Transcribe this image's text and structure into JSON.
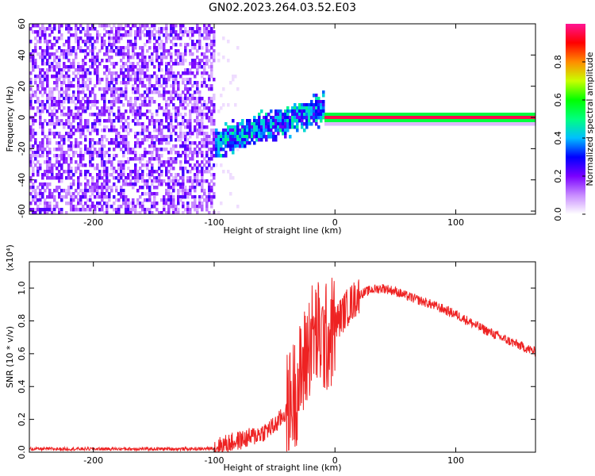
{
  "page_title": "GN02.2023.264.03.52.E03",
  "chart_data": [
    {
      "type": "heatmap",
      "title": "GN02.2023.264.03.52.E03",
      "xlabel": "Height of straight line (km)",
      "ylabel": "Frequency (Hz)",
      "xlim": [
        -253,
        166
      ],
      "ylim": [
        -62,
        60
      ],
      "x_ticks": [
        "-200",
        "-100",
        "0",
        "100"
      ],
      "y_ticks": [
        "-60",
        "-40",
        "-20",
        "0",
        "20",
        "40",
        "60"
      ],
      "colorbar": {
        "label": "Normalized spectral amplitude",
        "range": [
          0,
          1
        ],
        "ticks": [
          "0.0",
          "0.2",
          "0.4",
          "0.6",
          "0.8"
        ],
        "colormap": [
          "#ffffff",
          "#c88cff",
          "#7a00ff",
          "#0000ff",
          "#00bfff",
          "#00ff7f",
          "#00ff00",
          "#c8ff00",
          "#ff8c00",
          "#ff0000",
          "#ff1493"
        ]
      },
      "regions": [
        {
          "x_range": [
            -253,
            -100
          ],
          "description_level": 0.15,
          "noise": "broadband scattered"
        },
        {
          "x_range": [
            -100,
            -10
          ],
          "peak_freq_hz": [
            -15,
            12
          ],
          "level_range": [
            0.2,
            0.5
          ]
        },
        {
          "x_range": [
            -10,
            166
          ],
          "peak_freq_hz": [
            0,
            0
          ],
          "level": 1.0
        }
      ]
    },
    {
      "type": "line",
      "xlabel": "Height of straight line (km)",
      "ylabel": "SNR (10 * v/v)",
      "y_multiplier": "(x10⁴)",
      "xlim": [
        -253,
        166
      ],
      "ylim": [
        0,
        1.16
      ],
      "x_ticks": [
        "-200",
        "-100",
        "0",
        "100"
      ],
      "y_ticks": [
        "0.0",
        "0.2",
        "0.4",
        "0.6",
        "0.8",
        "1.0"
      ],
      "color": "#ee2222",
      "series": [
        {
          "x": [
            -253,
            -200,
            -150,
            -110,
            -100,
            -90,
            -80,
            -70,
            -60,
            -50,
            -40,
            -30,
            -25,
            -20,
            -15,
            -10,
            -5,
            0,
            10,
            20,
            30,
            40,
            50,
            60,
            80,
            100,
            120,
            140,
            166
          ],
          "values": [
            0.02,
            0.02,
            0.02,
            0.02,
            0.025,
            0.05,
            0.07,
            0.09,
            0.12,
            0.16,
            0.25,
            0.42,
            0.55,
            0.7,
            0.72,
            0.68,
            0.7,
            0.78,
            0.88,
            0.96,
            0.99,
            1.0,
            0.98,
            0.95,
            0.9,
            0.84,
            0.76,
            0.69,
            0.61
          ]
        }
      ]
    }
  ]
}
